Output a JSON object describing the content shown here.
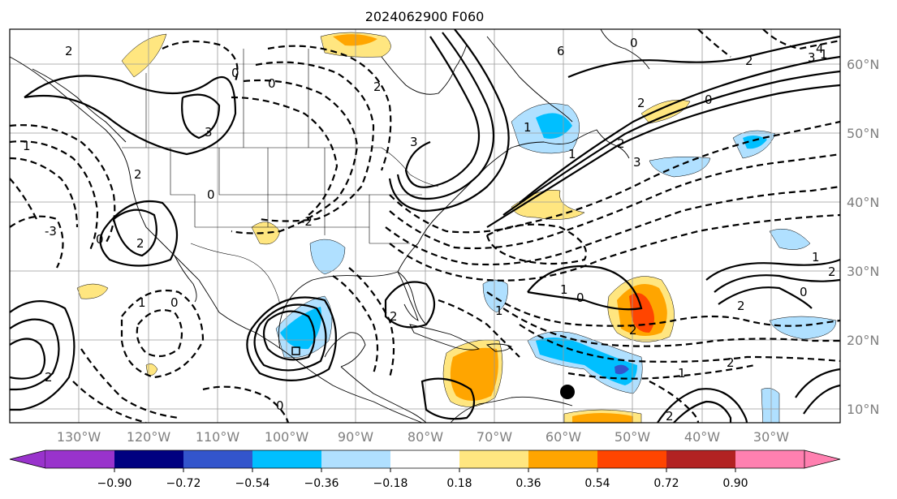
{
  "title": "2024062900 F060",
  "colors": {
    "cb_ext_low": "#9933cc",
    "cb_m090": "#000080",
    "cb_m072": "#3355cc",
    "cb_m054": "#00bfff",
    "cb_m036": "#b0e0ff",
    "cb_m018": "#ffffff",
    "cb_p018": "#ffe680",
    "cb_p036": "#ffa500",
    "cb_p054": "#ff4500",
    "cb_p072": "#b22222",
    "cb_ext_high": "#ff80b0"
  },
  "map": {
    "lon_labels": [
      "130°W",
      "120°W",
      "110°W",
      "100°W",
      "90°W",
      "80°W",
      "70°W",
      "60°W",
      "50°W",
      "40°W",
      "30°W"
    ],
    "lat_labels": [
      "60°N",
      "50°N",
      "40°N",
      "30°N",
      "20°N",
      "10°N"
    ],
    "contour_labels": [
      "2",
      "0",
      "3",
      "2",
      "1",
      "0",
      "0",
      "-3",
      "2",
      "3",
      "2",
      "0",
      "6",
      "0",
      "1",
      "2",
      "4",
      "3",
      "2",
      "1",
      "0",
      "1",
      "2",
      "3",
      "-2",
      "1",
      "2",
      "1",
      "2",
      "0",
      "0",
      "2",
      "1",
      "1",
      "0",
      "2",
      "2",
      "2",
      "1",
      "2",
      "0"
    ],
    "marker": "storm-center-dot"
  },
  "colorbar": {
    "tick_labels": [
      "−0.90",
      "−0.72",
      "−0.54",
      "−0.36",
      "−0.18",
      "0.18",
      "0.36",
      "0.54",
      "0.72",
      "0.90"
    ]
  }
}
